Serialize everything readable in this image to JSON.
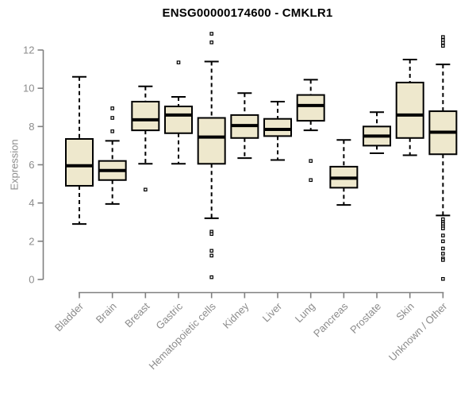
{
  "title": "ENSG00000174600 - CMKLR1",
  "ylabel": "Expression",
  "chart_data": {
    "type": "boxplot",
    "title": "ENSG00000174600 - CMKLR1",
    "xlabel": "",
    "ylabel": "Expression",
    "ylim": [
      0,
      12
    ],
    "yticks": [
      0,
      2,
      4,
      6,
      8,
      10,
      12
    ],
    "grid": false,
    "legend": "none",
    "categories": [
      "Bladder",
      "Brain",
      "Breast",
      "Gastric",
      "Hematopoietic cells",
      "Kidney",
      "Liver",
      "Lung",
      "Pancreas",
      "Prostate",
      "Skin",
      "Unknown / Other"
    ],
    "series": [
      {
        "name": "Bladder",
        "low": 2.9,
        "q1": 4.9,
        "median": 5.95,
        "q3": 7.35,
        "high": 10.6,
        "outliers": []
      },
      {
        "name": "Brain",
        "low": 3.95,
        "q1": 5.2,
        "median": 5.7,
        "q3": 6.2,
        "high": 7.25,
        "outliers": [
          7.75,
          8.45,
          8.95
        ]
      },
      {
        "name": "Breast",
        "low": 6.05,
        "q1": 7.8,
        "median": 8.35,
        "q3": 9.3,
        "high": 10.1,
        "outliers": [
          4.7
        ]
      },
      {
        "name": "Gastric",
        "low": 6.05,
        "q1": 7.65,
        "median": 8.6,
        "q3": 9.05,
        "high": 9.55,
        "outliers": [
          11.35
        ]
      },
      {
        "name": "Hematopoietic cells",
        "low": 3.2,
        "q1": 6.05,
        "median": 7.45,
        "q3": 8.45,
        "high": 11.4,
        "outliers": [
          12.85,
          12.4,
          2.5,
          2.38,
          1.5,
          1.25,
          0.12
        ]
      },
      {
        "name": "Kidney",
        "low": 6.35,
        "q1": 7.4,
        "median": 8.05,
        "q3": 8.6,
        "high": 9.75,
        "outliers": []
      },
      {
        "name": "Liver",
        "low": 6.25,
        "q1": 7.5,
        "median": 7.85,
        "q3": 8.4,
        "high": 9.3,
        "outliers": []
      },
      {
        "name": "Lung",
        "low": 7.8,
        "q1": 8.3,
        "median": 9.1,
        "q3": 9.65,
        "high": 10.45,
        "outliers": [
          6.2,
          5.2
        ]
      },
      {
        "name": "Pancreas",
        "low": 3.9,
        "q1": 4.8,
        "median": 5.3,
        "q3": 5.9,
        "high": 7.3,
        "outliers": []
      },
      {
        "name": "Prostate",
        "low": 6.6,
        "q1": 7.0,
        "median": 7.5,
        "q3": 8.0,
        "high": 8.75,
        "outliers": []
      },
      {
        "name": "Skin",
        "low": 6.5,
        "q1": 7.4,
        "median": 8.6,
        "q3": 10.3,
        "high": 11.5,
        "outliers": []
      },
      {
        "name": "Unknown / Other",
        "low": 3.35,
        "q1": 6.55,
        "median": 7.7,
        "q3": 8.8,
        "high": 11.25,
        "outliers": [
          12.68,
          12.52,
          12.38,
          12.22,
          3.15,
          3.0,
          2.9,
          2.78,
          2.67,
          2.3,
          2.0,
          1.62,
          1.35,
          1.1,
          1.02,
          0.03
        ]
      }
    ],
    "colors": {
      "box_fill": "#EEE8CD",
      "box_border": "#000000",
      "median": "#000000",
      "axis": "#808080",
      "text": "#8C8C8C",
      "title": "#000000",
      "background": "#FFFFFF"
    }
  }
}
